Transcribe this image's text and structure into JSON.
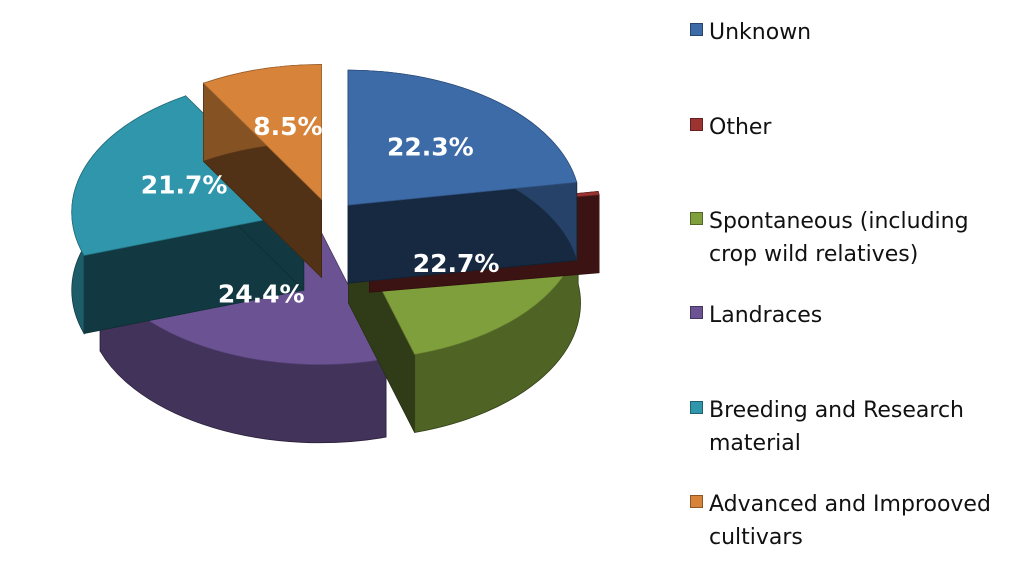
{
  "chart_data": {
    "type": "pie",
    "categories": [
      "Unknown",
      "Other",
      "Spontaneous (including crop wild relatives)",
      "Landraces",
      "Breeding and Research material",
      "Advanced and Improoved cultivars"
    ],
    "values": [
      22.3,
      0.4,
      22.7,
      24.4,
      21.7,
      8.5
    ],
    "labels": [
      "22.3%",
      "",
      "22.7%",
      "24.4%",
      "21.7%",
      "8.5%"
    ],
    "colors": [
      "#3d6ba8",
      "#9b3330",
      "#7f9f3c",
      "#6b5292",
      "#2f96ab",
      "#d7843a"
    ],
    "legend_position": "right"
  }
}
